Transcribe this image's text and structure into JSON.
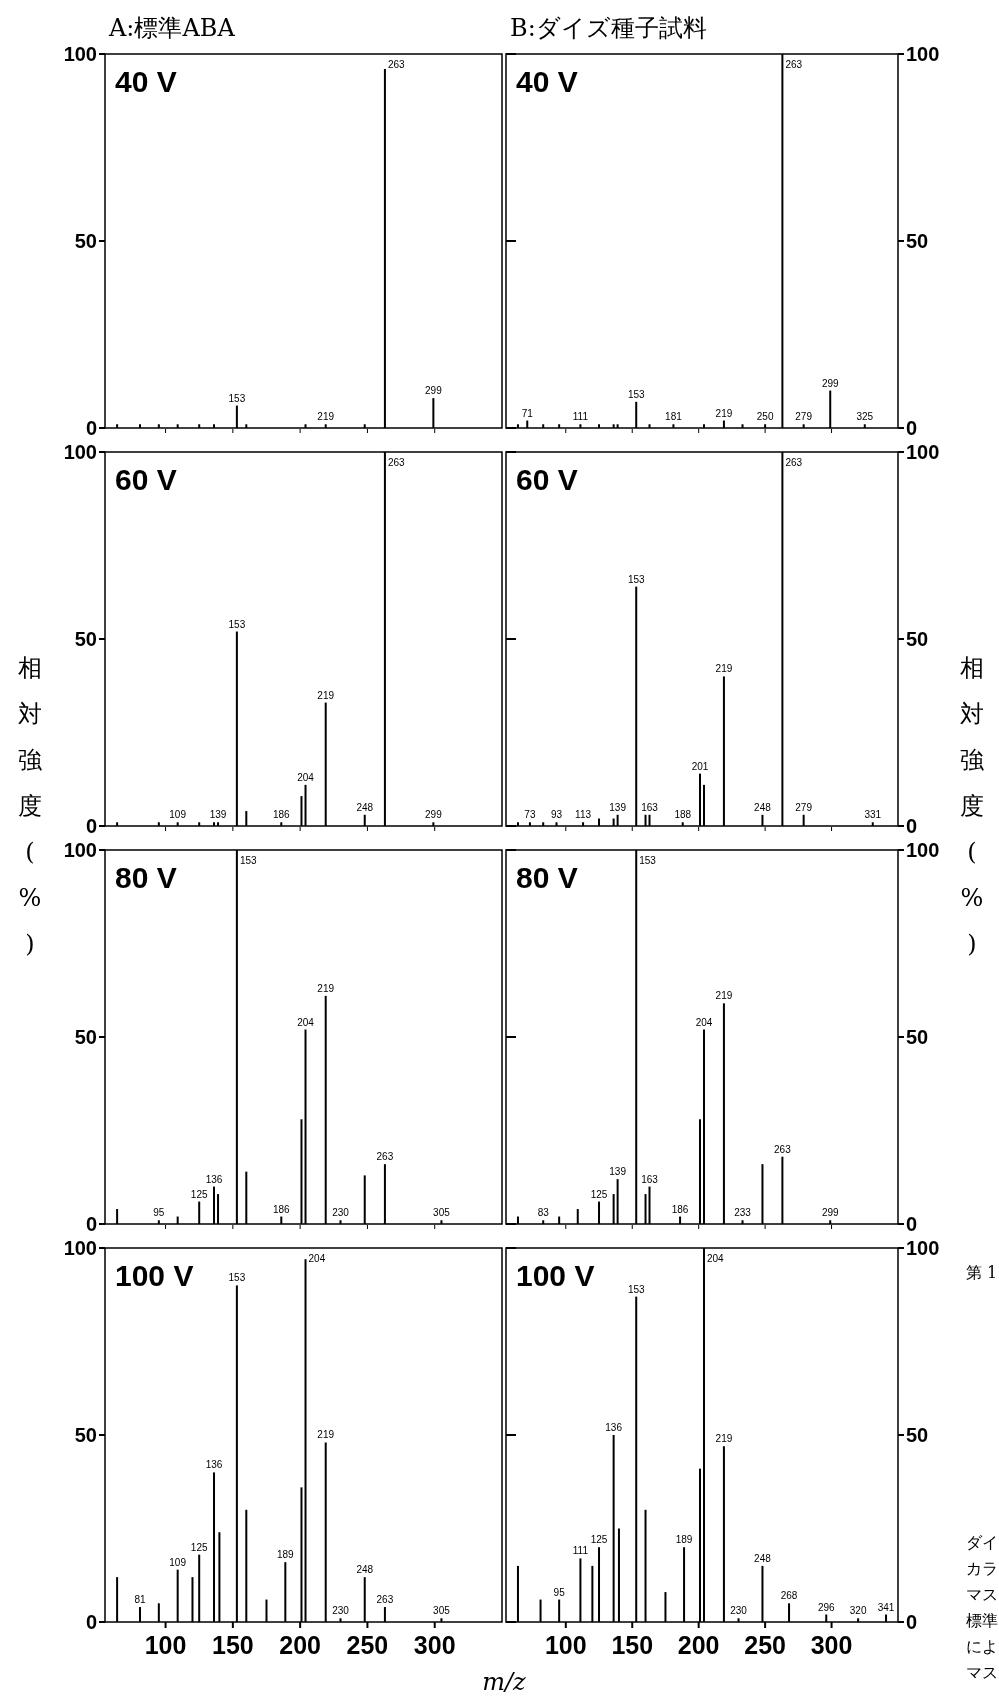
{
  "chart_data": [
    {
      "type": "bar",
      "title": "40 V",
      "color": "#000000",
      "xlim": [
        55,
        350
      ],
      "xticks": [
        100,
        150,
        200,
        250,
        300
      ],
      "ylim": [
        0,
        100
      ],
      "yticks": [
        0,
        50,
        100
      ],
      "tick_labels": "y",
      "annotations": [
        "A:標準ABA",
        {
          "text": "153",
          "x": 153,
          "y": 6
        },
        {
          "text": "219",
          "x": 219,
          "y": 1
        },
        {
          "text": "263",
          "x": 263,
          "y": 96
        },
        {
          "text": "299",
          "x": 299,
          "y": 8
        }
      ],
      "x": [
        64,
        81,
        95,
        109,
        125,
        136,
        153,
        160,
        204,
        219,
        248,
        263,
        299
      ],
      "values": [
        1,
        1,
        1,
        1,
        1,
        1,
        6,
        1,
        1,
        1,
        1,
        96,
        8
      ]
    },
    {
      "type": "bar",
      "title": "40 V",
      "color": "#000000",
      "xlim": [
        55,
        350
      ],
      "xticks": [
        100,
        150,
        200,
        250,
        300
      ],
      "ylim": [
        0,
        100
      ],
      "yticks": [
        0,
        50,
        100
      ],
      "tick_labels": "y",
      "annotations": [
        "B:ダイズ種子試料",
        {
          "text": "71",
          "x": 71,
          "y": 2
        },
        {
          "text": "111",
          "x": 111,
          "y": 1
        },
        {
          "text": "153",
          "x": 153,
          "y": 7
        },
        {
          "text": "181",
          "x": 181,
          "y": 1
        },
        {
          "text": "219",
          "x": 219,
          "y": 2
        },
        {
          "text": "250",
          "x": 250,
          "y": 1
        },
        {
          "text": "263",
          "x": 263,
          "y": 100
        },
        {
          "text": "279",
          "x": 279,
          "y": 1
        },
        {
          "text": "299",
          "x": 299,
          "y": 10
        },
        {
          "text": "325",
          "x": 325,
          "y": 1
        }
      ],
      "x": [
        64,
        71,
        83,
        95,
        111,
        125,
        136,
        139,
        153,
        163,
        181,
        204,
        219,
        233,
        250,
        263,
        279,
        299,
        325
      ],
      "values": [
        1,
        2,
        1,
        1,
        1,
        1,
        1,
        1,
        7,
        1,
        1,
        1,
        2,
        1,
        1,
        100,
        1,
        10,
        1
      ]
    },
    {
      "type": "bar",
      "title": "60 V",
      "ylabel": "相対強度(%)",
      "color": "#000000",
      "xlim": [
        55,
        350
      ],
      "xticks": [
        100,
        150,
        200,
        250,
        300
      ],
      "ylim": [
        0,
        100
      ],
      "yticks": [
        0,
        50,
        100
      ],
      "tick_labels": "y",
      "annotations": [
        {
          "text": "109",
          "x": 109,
          "y": 1
        },
        {
          "text": "139",
          "x": 139,
          "y": 1
        },
        {
          "text": "153",
          "x": 153,
          "y": 52
        },
        {
          "text": "186",
          "x": 186,
          "y": 1
        },
        {
          "text": "204",
          "x": 204,
          "y": 11
        },
        {
          "text": "219",
          "x": 219,
          "y": 33
        },
        {
          "text": "248",
          "x": 248,
          "y": 3
        },
        {
          "text": "263",
          "x": 263,
          "y": 100
        },
        {
          "text": "299",
          "x": 299,
          "y": 1
        }
      ],
      "x": [
        64,
        95,
        109,
        125,
        136,
        139,
        153,
        160,
        186,
        201,
        204,
        219,
        248,
        263,
        299
      ],
      "values": [
        1,
        1,
        1,
        1,
        1,
        1,
        52,
        4,
        1,
        8,
        11,
        33,
        3,
        100,
        1
      ]
    },
    {
      "type": "bar",
      "title": "60 V",
      "ylabel": "相対強度(%)",
      "color": "#000000",
      "xlim": [
        55,
        350
      ],
      "xticks": [
        100,
        150,
        200,
        250,
        300
      ],
      "ylim": [
        0,
        100
      ],
      "yticks": [
        0,
        50,
        100
      ],
      "tick_labels": "y",
      "annotations": [
        {
          "text": "73",
          "x": 73,
          "y": 1
        },
        {
          "text": "93",
          "x": 93,
          "y": 1
        },
        {
          "text": "113",
          "x": 113,
          "y": 1
        },
        {
          "text": "139",
          "x": 139,
          "y": 3
        },
        {
          "text": "153",
          "x": 153,
          "y": 64
        },
        {
          "text": "163",
          "x": 163,
          "y": 3
        },
        {
          "text": "188",
          "x": 188,
          "y": 1
        },
        {
          "text": "201",
          "x": 201,
          "y": 14
        },
        {
          "text": "219",
          "x": 219,
          "y": 40
        },
        {
          "text": "248",
          "x": 248,
          "y": 3
        },
        {
          "text": "263",
          "x": 263,
          "y": 100
        },
        {
          "text": "279",
          "x": 279,
          "y": 3
        },
        {
          "text": "331",
          "x": 331,
          "y": 1
        }
      ],
      "x": [
        64,
        73,
        83,
        93,
        113,
        125,
        136,
        139,
        153,
        160,
        163,
        188,
        201,
        204,
        219,
        248,
        263,
        279,
        331
      ],
      "values": [
        1,
        1,
        1,
        1,
        1,
        2,
        2,
        3,
        64,
        3,
        3,
        1,
        14,
        11,
        40,
        3,
        100,
        3,
        1
      ]
    },
    {
      "type": "bar",
      "title": "80 V",
      "color": "#000000",
      "xlim": [
        55,
        350
      ],
      "xticks": [
        100,
        150,
        200,
        250,
        300
      ],
      "ylim": [
        0,
        100
      ],
      "yticks": [
        0,
        50,
        100
      ],
      "tick_labels": "y",
      "annotations": [
        {
          "text": "95",
          "x": 95,
          "y": 1
        },
        {
          "text": "125",
          "x": 125,
          "y": 6
        },
        {
          "text": "136",
          "x": 136,
          "y": 10
        },
        {
          "text": "153",
          "x": 153,
          "y": 100
        },
        {
          "text": "186",
          "x": 186,
          "y": 2
        },
        {
          "text": "204",
          "x": 204,
          "y": 52
        },
        {
          "text": "219",
          "x": 219,
          "y": 61
        },
        {
          "text": "230",
          "x": 230,
          "y": 1
        },
        {
          "text": "263",
          "x": 263,
          "y": 16
        },
        {
          "text": "305",
          "x": 305,
          "y": 1
        }
      ],
      "x": [
        64,
        95,
        109,
        125,
        136,
        139,
        153,
        160,
        186,
        201,
        204,
        219,
        230,
        248,
        263,
        305
      ],
      "values": [
        4,
        1,
        2,
        6,
        10,
        8,
        100,
        14,
        2,
        28,
        52,
        61,
        1,
        13,
        16,
        1
      ]
    },
    {
      "type": "bar",
      "title": "80 V",
      "color": "#000000",
      "xlim": [
        55,
        350
      ],
      "xticks": [
        100,
        150,
        200,
        250,
        300
      ],
      "ylim": [
        0,
        100
      ],
      "yticks": [
        0,
        50,
        100
      ],
      "tick_labels": "y",
      "annotations": [
        {
          "text": "83",
          "x": 83,
          "y": 1
        },
        {
          "text": "125",
          "x": 125,
          "y": 6
        },
        {
          "text": "139",
          "x": 139,
          "y": 12
        },
        {
          "text": "153",
          "x": 153,
          "y": 100
        },
        {
          "text": "163",
          "x": 163,
          "y": 10
        },
        {
          "text": "186",
          "x": 186,
          "y": 2
        },
        {
          "text": "204",
          "x": 204,
          "y": 52
        },
        {
          "text": "219",
          "x": 219,
          "y": 59
        },
        {
          "text": "233",
          "x": 233,
          "y": 1
        },
        {
          "text": "263",
          "x": 263,
          "y": 18
        },
        {
          "text": "299",
          "x": 299,
          "y": 1
        }
      ],
      "x": [
        64,
        83,
        95,
        109,
        125,
        136,
        139,
        153,
        160,
        163,
        186,
        201,
        204,
        219,
        233,
        248,
        263,
        299
      ],
      "values": [
        2,
        1,
        2,
        4,
        6,
        8,
        12,
        100,
        8,
        10,
        2,
        28,
        52,
        59,
        1,
        16,
        18,
        1
      ]
    },
    {
      "type": "bar",
      "title": "100 V",
      "xlabel": "m/z",
      "color": "#000000",
      "xlim": [
        55,
        350
      ],
      "xticks": [
        100,
        150,
        200,
        250,
        300
      ],
      "ylim": [
        0,
        100
      ],
      "yticks": [
        0,
        50,
        100
      ],
      "annotations": [
        {
          "text": "81",
          "x": 81,
          "y": 4
        },
        {
          "text": "109",
          "x": 109,
          "y": 14
        },
        {
          "text": "125",
          "x": 125,
          "y": 18
        },
        {
          "text": "136",
          "x": 136,
          "y": 40
        },
        {
          "text": "153",
          "x": 153,
          "y": 90
        },
        {
          "text": "189",
          "x": 189,
          "y": 16
        },
        {
          "text": "204",
          "x": 204,
          "y": 97
        },
        {
          "text": "219",
          "x": 219,
          "y": 48
        },
        {
          "text": "230",
          "x": 230,
          "y": 1
        },
        {
          "text": "248",
          "x": 248,
          "y": 12
        },
        {
          "text": "263",
          "x": 263,
          "y": 4
        },
        {
          "text": "305",
          "x": 305,
          "y": 1
        }
      ],
      "x": [
        64,
        81,
        95,
        109,
        120,
        125,
        136,
        140,
        153,
        160,
        175,
        189,
        201,
        204,
        219,
        230,
        248,
        263,
        305
      ],
      "values": [
        12,
        4,
        5,
        14,
        12,
        18,
        40,
        24,
        90,
        30,
        6,
        16,
        36,
        97,
        48,
        1,
        12,
        4,
        1
      ]
    },
    {
      "type": "bar",
      "title": "100 V",
      "color": "#000000",
      "xlim": [
        55,
        350
      ],
      "xticks": [
        100,
        150,
        200,
        250,
        300
      ],
      "ylim": [
        0,
        100
      ],
      "yticks": [
        0,
        50,
        100
      ],
      "annotations": [
        "第 1",
        "ダイ",
        "カラ",
        "マス",
        "標準",
        "によ",
        "マス",
        {
          "text": "95",
          "x": 95,
          "y": 6
        },
        {
          "text": "111",
          "x": 111,
          "y": 17
        },
        {
          "text": "125",
          "x": 125,
          "y": 20
        },
        {
          "text": "136",
          "x": 136,
          "y": 50
        },
        {
          "text": "153",
          "x": 153,
          "y": 87
        },
        {
          "text": "189",
          "x": 189,
          "y": 20
        },
        {
          "text": "204",
          "x": 204,
          "y": 100
        },
        {
          "text": "219",
          "x": 219,
          "y": 47
        },
        {
          "text": "230",
          "x": 230,
          "y": 1
        },
        {
          "text": "248",
          "x": 248,
          "y": 15
        },
        {
          "text": "268",
          "x": 268,
          "y": 5
        },
        {
          "text": "296",
          "x": 296,
          "y": 2
        },
        {
          "text": "320",
          "x": 320,
          "y": 1
        },
        {
          "text": "341",
          "x": 341,
          "y": 2
        }
      ],
      "x": [
        64,
        81,
        95,
        111,
        120,
        125,
        136,
        140,
        153,
        160,
        175,
        189,
        201,
        204,
        219,
        230,
        248,
        268,
        296,
        320,
        341
      ],
      "values": [
        15,
        6,
        6,
        17,
        15,
        20,
        50,
        25,
        87,
        30,
        8,
        20,
        41,
        100,
        47,
        1,
        15,
        5,
        2,
        1,
        2
      ]
    }
  ]
}
